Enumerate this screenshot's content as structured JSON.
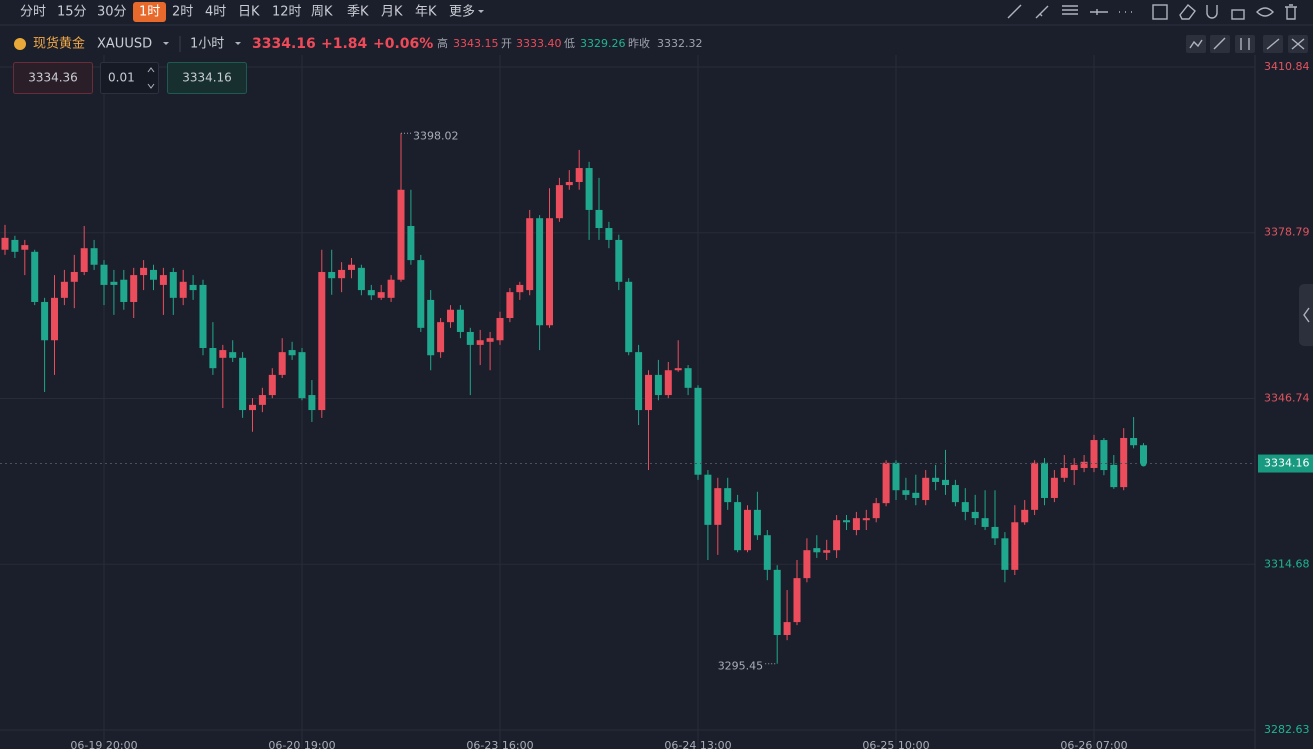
{
  "toolbar": {
    "timeframes": [
      "分时",
      "15分",
      "30分",
      "1时",
      "2时",
      "4时",
      "日K",
      "12时",
      "周K",
      "季K",
      "月K",
      "年K"
    ],
    "more": "更多"
  },
  "header": {
    "name": "现货黄金",
    "symbol": "XAUUSD",
    "interval": "1小时",
    "price": "3334.16",
    "change": "+1.84",
    "change_pct": "+0.06%",
    "high_label": "高",
    "high": "3343.15",
    "open_label": "开",
    "open": "3333.40",
    "low_label": "低",
    "low": "3329.26",
    "prev_close_label": "昨收",
    "prev_close": "3332.32"
  },
  "order": {
    "sell": "3334.36",
    "lots": "0.01",
    "buy": "3334.16"
  },
  "chart_data": {
    "type": "candlestick",
    "up_color": "#eb4d5c",
    "down_color": "#1fa88e",
    "grid": true,
    "categories": [
      null,
      null,
      null,
      null,
      null,
      null,
      null,
      null,
      null,
      null,
      "06-19 20:00",
      null,
      null,
      null,
      null,
      null,
      null,
      null,
      null,
      null,
      null,
      null,
      null,
      null,
      null,
      null,
      null,
      null,
      null,
      null,
      "06-20 19:00",
      null,
      null,
      null,
      null,
      null,
      null,
      null,
      null,
      null,
      null,
      null,
      null,
      null,
      null,
      null,
      null,
      null,
      null,
      null,
      "06-23 16:00",
      null,
      null,
      null,
      null,
      null,
      null,
      null,
      null,
      null,
      null,
      null,
      null,
      null,
      null,
      null,
      null,
      null,
      null,
      null,
      "06-24 13:00",
      null,
      null,
      null,
      null,
      null,
      null,
      null,
      null,
      null,
      null,
      null,
      null,
      null,
      null,
      null,
      null,
      null,
      null,
      null,
      "06-25 10:00",
      null,
      null,
      null,
      null,
      null,
      null,
      null,
      null,
      null,
      null,
      null,
      null,
      null,
      null,
      null,
      null,
      null,
      null,
      null,
      "06-26 07:00",
      null,
      null,
      null,
      null,
      null
    ],
    "open": [
      3375.5,
      3377.4,
      3375.5,
      3375.1,
      3365.4,
      3358.0,
      3366.2,
      3369.3,
      3371.2,
      3375.8,
      3372.6,
      3369.3,
      3369.7,
      3365.4,
      3370.6,
      3371.6,
      3368.7,
      3371.2,
      3366.2,
      3368.7,
      3368.7,
      3356.5,
      3354.6,
      3355.7,
      3354.6,
      3344.5,
      3345.5,
      3347.4,
      3351.3,
      3356.1,
      3355.7,
      3347.4,
      3344.5,
      3371.2,
      3370.0,
      3371.6,
      3372.0,
      3367.7,
      3366.2,
      3366.2,
      3369.7,
      3380.1,
      3373.5,
      3365.8,
      3355.7,
      3361.5,
      3363.9,
      3359.6,
      3357.1,
      3357.7,
      3358.0,
      3362.3,
      3367.3,
      3367.7,
      3381.6,
      3360.9,
      3381.6,
      3388.0,
      3388.6,
      3391.3,
      3383.2,
      3379.7,
      3377.4,
      3369.3,
      3355.7,
      3344.5,
      3351.3,
      3347.4,
      3352.2,
      3352.6,
      3348.8,
      3332.0,
      3322.3,
      3329.4,
      3326.7,
      3317.4,
      3325.2,
      3320.3,
      3313.6,
      3301.0,
      3303.5,
      3312.0,
      3317.8,
      3316.9,
      3317.4,
      3323.2,
      3321.3,
      3323.2,
      3323.6,
      3326.5,
      3334.3,
      3329.0,
      3328.5,
      3327.1,
      3331.4,
      3331.0,
      3330.0,
      3326.7,
      3324.8,
      3323.6,
      3321.9,
      3319.7,
      3313.6,
      3322.8,
      3325.2,
      3334.3,
      3327.5,
      3331.4,
      3332.9,
      3333.3,
      3333.3,
      3338.7,
      3333.9,
      3329.6,
      3339.1,
      3337.7
    ],
    "high": [
      3380.3,
      3378.2,
      3377.4,
      3375.5,
      3366.2,
      3370.6,
      3371.6,
      3374.5,
      3380.1,
      3377.4,
      3373.5,
      3371.6,
      3371.6,
      3372.0,
      3373.5,
      3372.6,
      3372.0,
      3372.0,
      3371.6,
      3370.6,
      3369.7,
      3361.5,
      3357.1,
      3358.0,
      3355.7,
      3346.8,
      3348.8,
      3352.6,
      3358.4,
      3357.7,
      3356.5,
      3350.3,
      3375.5,
      3375.5,
      3373.1,
      3373.9,
      3372.6,
      3368.7,
      3368.7,
      3370.6,
      3398.02,
      3387.1,
      3374.5,
      3367.7,
      3362.3,
      3364.8,
      3364.8,
      3360.4,
      3360.0,
      3359.6,
      3363.5,
      3368.1,
      3369.3,
      3383.2,
      3382.2,
      3387.4,
      3389.4,
      3390.9,
      3394.8,
      3392.5,
      3389.4,
      3380.9,
      3378.4,
      3370.0,
      3357.1,
      3352.2,
      3354.2,
      3353.8,
      3358.0,
      3353.2,
      3349.3,
      3332.9,
      3331.4,
      3331.4,
      3328.1,
      3326.1,
      3328.7,
      3321.3,
      3314.5,
      3309.7,
      3315.5,
      3319.7,
      3320.3,
      3319.4,
      3324.2,
      3324.2,
      3324.8,
      3325.2,
      3327.5,
      3334.8,
      3334.8,
      3331.4,
      3332.0,
      3332.9,
      3333.9,
      3336.8,
      3331.0,
      3329.4,
      3328.1,
      3329.0,
      3329.0,
      3320.9,
      3326.1,
      3327.1,
      3334.8,
      3335.2,
      3332.9,
      3335.8,
      3335.2,
      3335.8,
      3339.7,
      3339.1,
      3335.8,
      3341.0,
      3343.15,
      3338.1
    ],
    "low": [
      3374.5,
      3373.9,
      3370.6,
      3364.8,
      3348.0,
      3351.3,
      3364.8,
      3364.2,
      3370.6,
      3371.6,
      3364.8,
      3362.9,
      3363.9,
      3362.3,
      3367.7,
      3367.7,
      3362.9,
      3362.9,
      3364.8,
      3365.8,
      3355.1,
      3351.3,
      3344.9,
      3353.8,
      3343.0,
      3340.3,
      3344.1,
      3346.8,
      3350.7,
      3354.2,
      3346.4,
      3342.2,
      3343.0,
      3366.8,
      3367.3,
      3370.0,
      3366.7,
      3365.8,
      3365.8,
      3365.4,
      3369.3,
      3372.6,
      3359.6,
      3352.2,
      3354.6,
      3360.4,
      3358.4,
      3347.4,
      3353.2,
      3352.2,
      3357.1,
      3361.5,
      3365.8,
      3366.7,
      3356.1,
      3360.4,
      3380.9,
      3387.1,
      3387.1,
      3377.4,
      3377.4,
      3375.8,
      3367.7,
      3355.1,
      3341.6,
      3332.9,
      3346.4,
      3346.8,
      3351.9,
      3347.4,
      3331.0,
      3315.5,
      3316.5,
      3325.2,
      3317.0,
      3317.0,
      3319.4,
      3311.6,
      3295.45,
      3300.0,
      3302.9,
      3311.2,
      3315.9,
      3315.5,
      3315.9,
      3321.3,
      3320.3,
      3321.3,
      3322.8,
      3325.9,
      3327.1,
      3327.1,
      3326.1,
      3326.1,
      3329.0,
      3328.1,
      3325.9,
      3323.2,
      3322.3,
      3321.3,
      3318.4,
      3311.2,
      3312.6,
      3322.3,
      3324.2,
      3326.1,
      3326.7,
      3330.6,
      3330.0,
      3332.5,
      3332.5,
      3331.9,
      3329.26,
      3329.0,
      3337.1,
      3333.7
    ],
    "close": [
      3377.8,
      3375.1,
      3376.4,
      3365.4,
      3358.0,
      3366.2,
      3369.3,
      3371.2,
      3375.8,
      3372.6,
      3368.7,
      3368.7,
      3365.4,
      3370.6,
      3372.0,
      3369.7,
      3370.6,
      3366.2,
      3369.3,
      3367.7,
      3356.5,
      3352.6,
      3356.1,
      3354.6,
      3344.5,
      3345.5,
      3347.4,
      3351.3,
      3355.7,
      3355.1,
      3346.8,
      3344.5,
      3371.2,
      3370.0,
      3371.6,
      3372.6,
      3367.7,
      3366.7,
      3367.3,
      3369.7,
      3387.1,
      3373.5,
      3360.4,
      3355.1,
      3361.5,
      3363.9,
      3359.6,
      3357.1,
      3358.0,
      3358.4,
      3362.3,
      3367.3,
      3368.7,
      3381.6,
      3360.9,
      3381.6,
      3388.0,
      3388.6,
      3391.3,
      3383.2,
      3379.7,
      3377.4,
      3369.3,
      3355.7,
      3344.5,
      3351.3,
      3347.4,
      3352.2,
      3352.6,
      3348.8,
      3332.0,
      3322.3,
      3329.4,
      3326.7,
      3317.4,
      3325.2,
      3320.3,
      3313.6,
      3301.0,
      3303.5,
      3312.0,
      3317.4,
      3317.0,
      3317.4,
      3323.2,
      3322.8,
      3323.6,
      3323.6,
      3326.5,
      3334.3,
      3329.0,
      3328.1,
      3327.5,
      3331.4,
      3330.6,
      3330.0,
      3326.7,
      3324.8,
      3323.6,
      3321.9,
      3319.7,
      3313.6,
      3322.8,
      3325.2,
      3334.3,
      3327.5,
      3331.4,
      3333.3,
      3333.9,
      3334.5,
      3338.7,
      3332.9,
      3329.6,
      3339.1,
      3337.7,
      3334.16
    ],
    "ylim": [
      3279.73,
      3413.16
    ],
    "yticks": [
      3410.84,
      3378.79,
      3346.74,
      3314.68,
      3282.63
    ]
  }
}
